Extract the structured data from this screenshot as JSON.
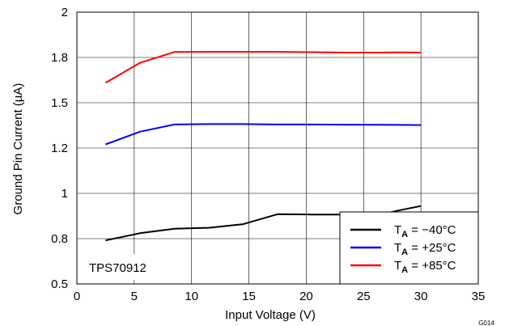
{
  "chart_data": {
    "type": "line",
    "title": "",
    "xlabel": "Input Voltage (V)",
    "ylabel": "Ground Pin Current (µA)",
    "xlim": [
      0,
      35
    ],
    "ylim": [
      0.5,
      2
    ],
    "x_ticks": [
      0,
      5,
      10,
      15,
      20,
      25,
      30,
      35
    ],
    "y_ticks": [
      0.5,
      0.75,
      1,
      1.25,
      1.5,
      1.75,
      2
    ],
    "y_tick_labels": [
      "0.5",
      "0.8",
      "1",
      "1.2",
      "1.5",
      "1.8",
      "2"
    ],
    "grid": true,
    "legend_position": "bottom-right",
    "annotation": "TPS70912",
    "figure_code": "G014",
    "series": [
      {
        "name_main": "T",
        "name_sub": "A",
        "name_rest": " = −40°C",
        "color": "#000000",
        "x": [
          2.5,
          5.5,
          8.5,
          11.5,
          14.5,
          17.5,
          20.5,
          23.5,
          26.5,
          28,
          30
        ],
        "y": [
          0.74,
          0.78,
          0.805,
          0.81,
          0.83,
          0.885,
          0.883,
          0.883,
          0.883,
          0.905,
          0.93
        ]
      },
      {
        "name_main": "T",
        "name_sub": "A",
        "name_rest": " = +25°C",
        "color": "#0000ff",
        "x": [
          2.5,
          5.5,
          8.5,
          11.5,
          14.5,
          17.5,
          20.5,
          23.5,
          26.5,
          30
        ],
        "y": [
          1.27,
          1.34,
          1.38,
          1.382,
          1.382,
          1.38,
          1.38,
          1.379,
          1.378,
          1.377
        ]
      },
      {
        "name_main": "T",
        "name_sub": "A",
        "name_rest": " = +85°C",
        "color": "#ff0000",
        "x": [
          2.5,
          5.5,
          8.5,
          11.5,
          14.5,
          17.5,
          20.5,
          23.5,
          26.5,
          28,
          30
        ],
        "y": [
          1.61,
          1.72,
          1.78,
          1.781,
          1.781,
          1.781,
          1.779,
          1.777,
          1.777,
          1.778,
          1.777
        ]
      }
    ]
  }
}
